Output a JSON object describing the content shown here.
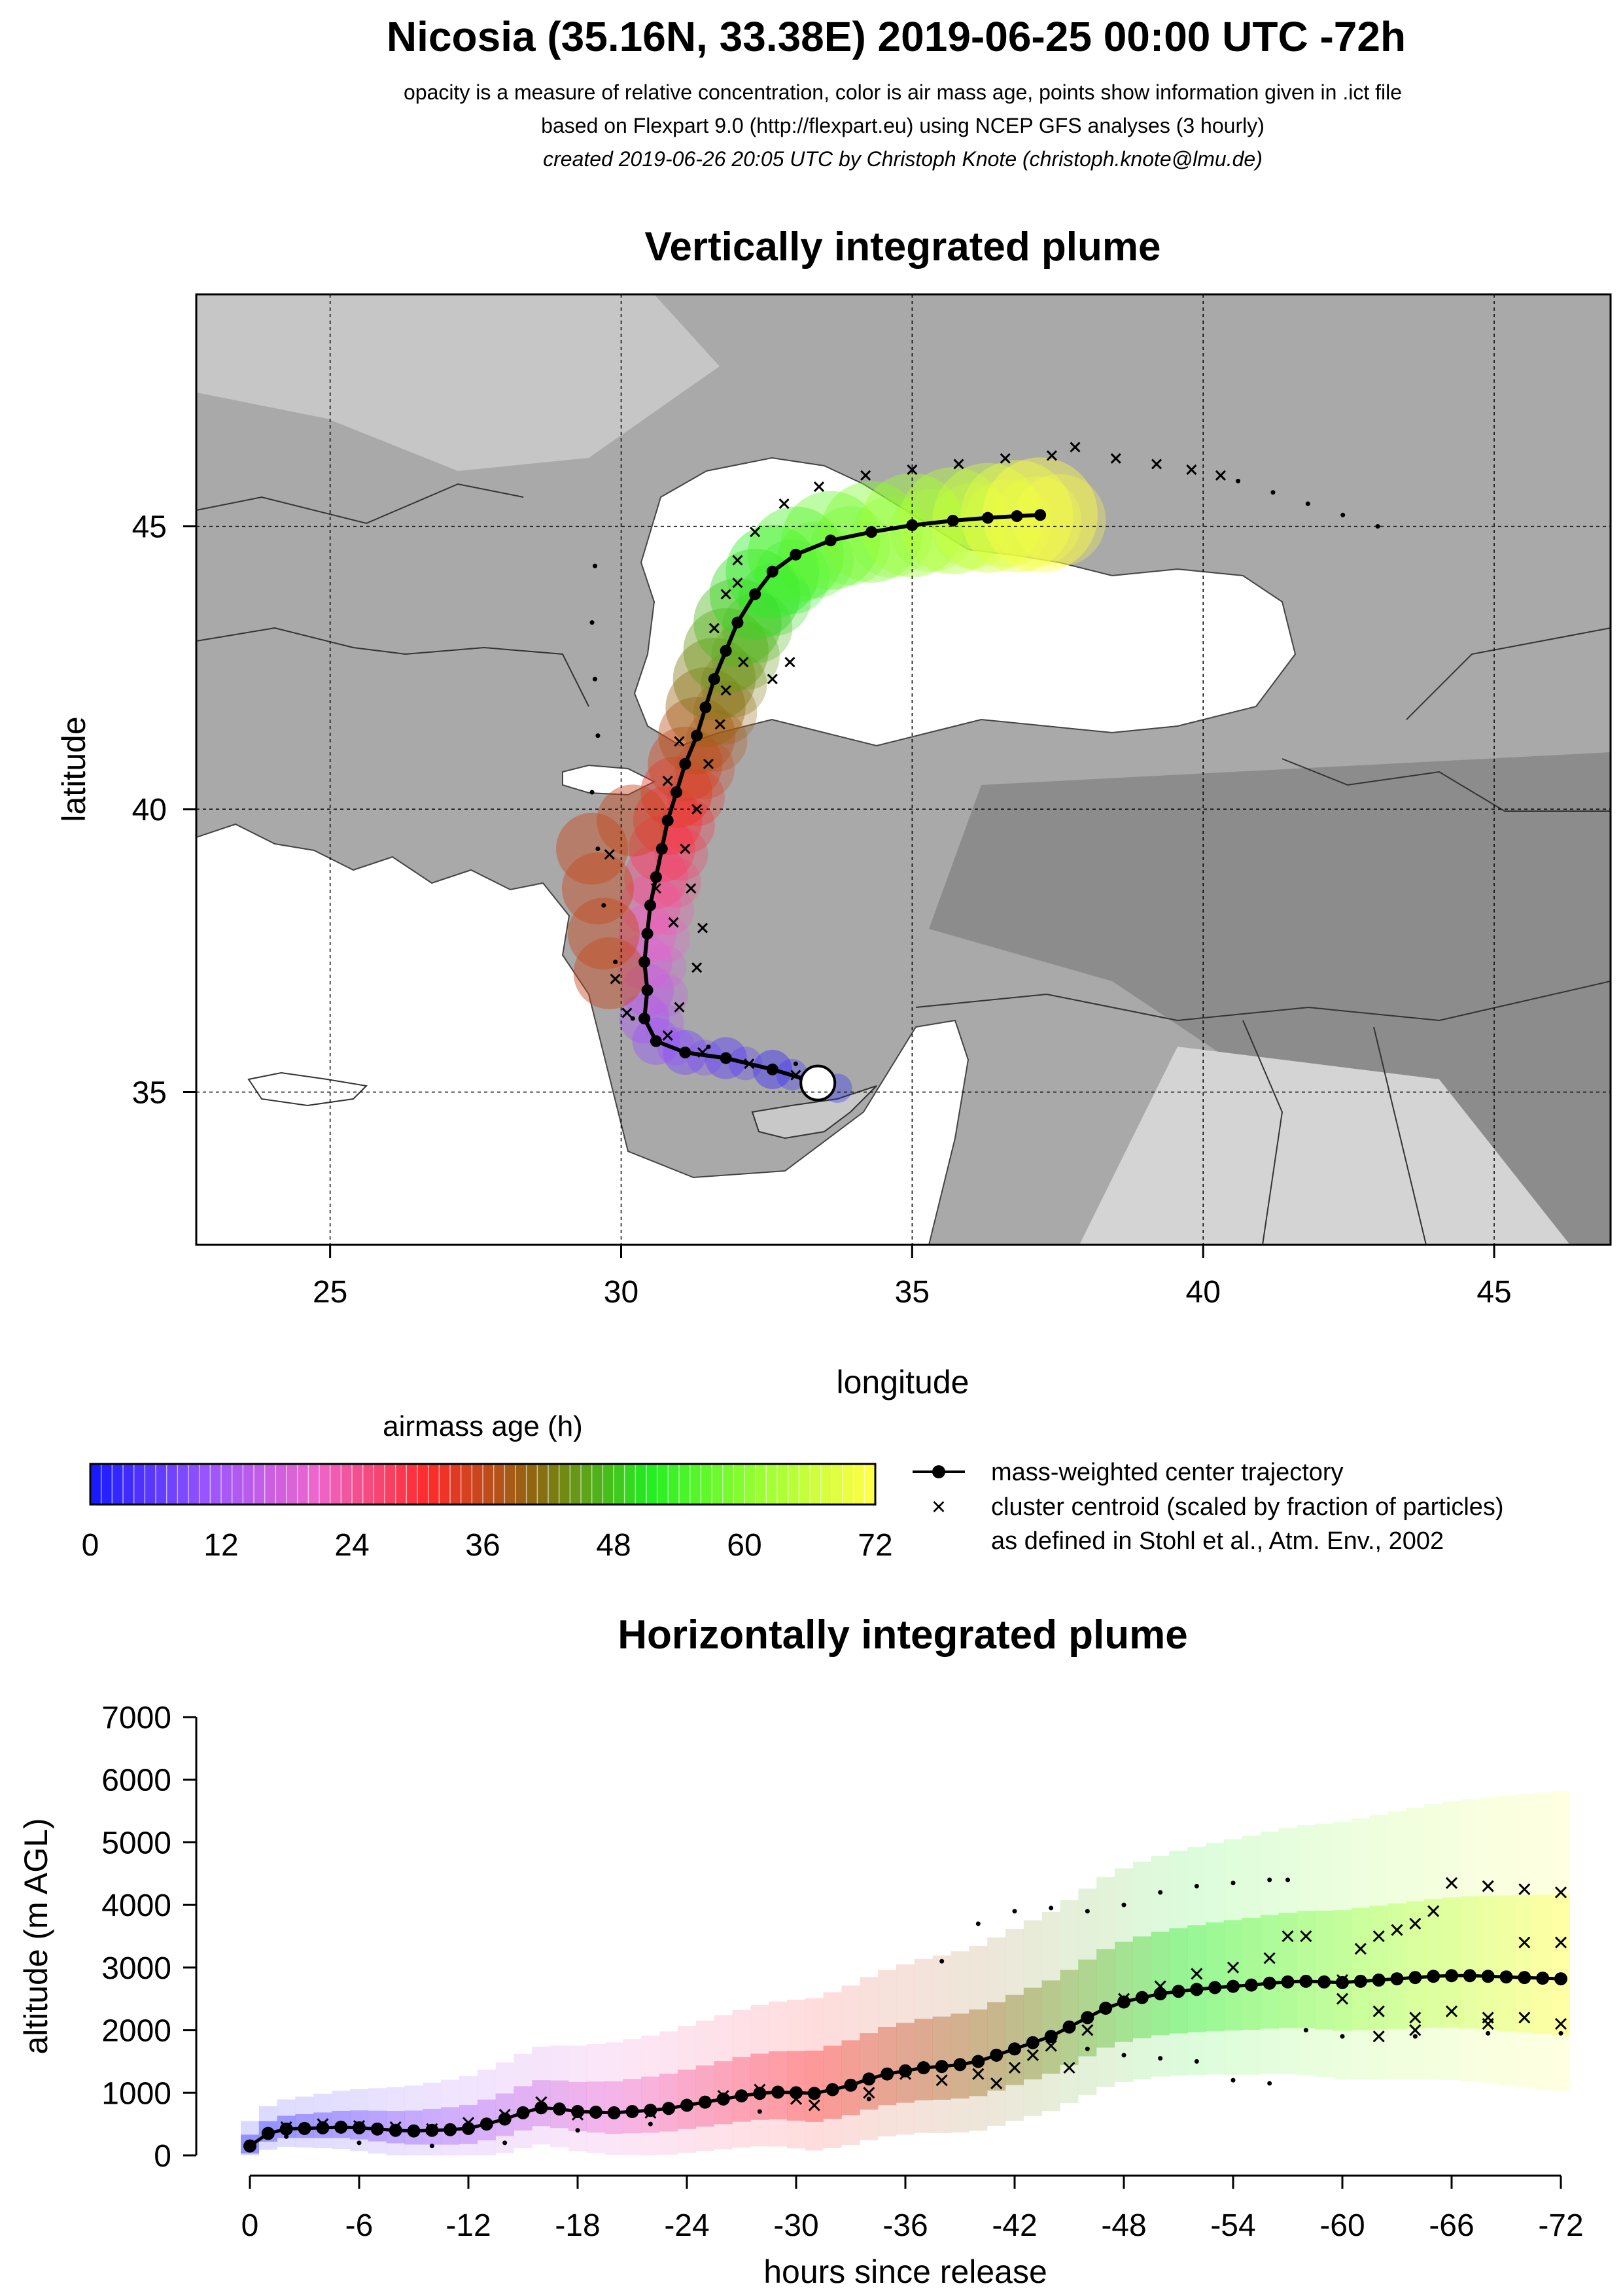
{
  "title": {
    "main": "Nicosia (35.16N, 33.38E) 2019-06-25 00:00 UTC -72h",
    "line1": "opacity is a measure of relative concentration, color is air mass age, points show information given in .ict file",
    "line2": "based on Flexpart 9.0 (http://flexpart.eu) using NCEP GFS analyses (3 hourly)",
    "line3": "created 2019-06-26 20:05 UTC by Christoph Knote (christoph.knote@lmu.de)"
  },
  "colors": {
    "age_scale": [
      "#1a1aff",
      "#9955ff",
      "#ee66cc",
      "#ff2a2a",
      "#8a6a10",
      "#22ee22",
      "#99ff33",
      "#ffff44"
    ],
    "map_shade": "#a8a8a8",
    "sea": "#ffffff",
    "trajectory": "#000000"
  },
  "chart_data": [
    {
      "type": "scatter",
      "title": "Vertically integrated plume",
      "xlabel": "longitude",
      "ylabel": "latitude",
      "xlim": [
        22.7,
        47.0
      ],
      "ylim": [
        32.3,
        49.1
      ],
      "xticks": [
        25,
        30,
        35,
        40,
        45
      ],
      "yticks": [
        35,
        40,
        45
      ],
      "tick_labels_x": [
        "25",
        "30",
        "35",
        "40",
        "45"
      ],
      "tick_labels_y": [
        "35",
        "40",
        "45"
      ],
      "grid": true,
      "release_site": {
        "label": "Nicosia",
        "lon": 33.38,
        "lat": 35.16
      },
      "series": [
        {
          "name": "mass-weighted center trajectory",
          "marker": "filled-circle-line",
          "points": [
            [
              33.38,
              35.16
            ],
            [
              32.6,
              35.4
            ],
            [
              31.8,
              35.6
            ],
            [
              31.1,
              35.7
            ],
            [
              30.6,
              35.9
            ],
            [
              30.4,
              36.3
            ],
            [
              30.45,
              36.8
            ],
            [
              30.4,
              37.3
            ],
            [
              30.45,
              37.8
            ],
            [
              30.5,
              38.3
            ],
            [
              30.6,
              38.8
            ],
            [
              30.7,
              39.3
            ],
            [
              30.8,
              39.8
            ],
            [
              30.95,
              40.3
            ],
            [
              31.1,
              40.8
            ],
            [
              31.3,
              41.3
            ],
            [
              31.45,
              41.8
            ],
            [
              31.6,
              42.3
            ],
            [
              31.8,
              42.8
            ],
            [
              32.0,
              43.3
            ],
            [
              32.3,
              43.8
            ],
            [
              32.6,
              44.2
            ],
            [
              33.0,
              44.5
            ],
            [
              33.6,
              44.75
            ],
            [
              34.3,
              44.9
            ],
            [
              35.0,
              45.02
            ],
            [
              35.7,
              45.1
            ],
            [
              36.3,
              45.15
            ],
            [
              36.8,
              45.18
            ],
            [
              37.2,
              45.2
            ]
          ]
        },
        {
          "name": "cluster centroid (scaled by fraction of particles)",
          "marker": "x",
          "points": [
            [
              33.0,
              35.3
            ],
            [
              32.2,
              35.5
            ],
            [
              31.4,
              35.7
            ],
            [
              30.8,
              36.0
            ],
            [
              31.0,
              36.5
            ],
            [
              31.3,
              37.2
            ],
            [
              31.4,
              37.9
            ],
            [
              31.2,
              38.6
            ],
            [
              31.1,
              39.3
            ],
            [
              31.3,
              40.0
            ],
            [
              31.5,
              40.8
            ],
            [
              31.7,
              41.5
            ],
            [
              31.8,
              42.1
            ],
            [
              32.1,
              42.6
            ],
            [
              32.6,
              42.3
            ],
            [
              32.9,
              42.6
            ],
            [
              31.6,
              43.2
            ],
            [
              31.8,
              43.8
            ],
            [
              32.0,
              44.4
            ],
            [
              32.3,
              44.9
            ],
            [
              32.8,
              45.4
            ],
            [
              33.4,
              45.7
            ],
            [
              34.2,
              45.9
            ],
            [
              35.0,
              46.0
            ],
            [
              35.8,
              46.1
            ],
            [
              36.6,
              46.2
            ],
            [
              37.4,
              46.25
            ],
            [
              37.8,
              46.4
            ],
            [
              38.5,
              46.2
            ],
            [
              39.2,
              46.1
            ],
            [
              39.8,
              46.0
            ],
            [
              40.3,
              45.9
            ],
            [
              30.9,
              38.0
            ],
            [
              30.6,
              38.6
            ],
            [
              30.8,
              40.5
            ],
            [
              31.0,
              41.2
            ],
            [
              32.0,
              44.0
            ],
            [
              29.9,
              37.0
            ],
            [
              30.1,
              36.4
            ],
            [
              29.8,
              39.2
            ]
          ]
        },
        {
          "name": "",
          "marker": "small-dot",
          "points": [
            [
              33.0,
              35.5
            ],
            [
              31.5,
              35.8
            ],
            [
              30.2,
              36.3
            ],
            [
              29.9,
              37.3
            ],
            [
              29.7,
              38.3
            ],
            [
              29.6,
              39.3
            ],
            [
              29.5,
              40.3
            ],
            [
              29.6,
              41.3
            ],
            [
              29.55,
              42.3
            ],
            [
              29.5,
              43.3
            ],
            [
              29.55,
              44.3
            ],
            [
              40.6,
              45.8
            ],
            [
              41.2,
              45.6
            ],
            [
              41.8,
              45.4
            ],
            [
              42.4,
              45.2
            ],
            [
              43.0,
              45.0
            ]
          ]
        }
      ]
    },
    {
      "type": "scatter",
      "title": "Horizontally integrated plume",
      "xlabel": "hours since release",
      "ylabel": "altitude (m AGL)",
      "xlim": [
        0,
        -72
      ],
      "ylim": [
        0,
        7000
      ],
      "xticks": [
        0,
        -6,
        -12,
        -18,
        -24,
        -30,
        -36,
        -42,
        -48,
        -54,
        -60,
        -66,
        -72
      ],
      "tick_labels_x": [
        "0",
        "-6",
        "-12",
        "-18",
        "-24",
        "-30",
        "-36",
        "-42",
        "-48",
        "-54",
        "-60",
        "-66",
        "-72"
      ],
      "yticks": [
        0,
        1000,
        2000,
        3000,
        4000,
        5000,
        6000,
        7000
      ],
      "tick_labels_y": [
        "0",
        "1000",
        "2000",
        "3000",
        "4000",
        "5000",
        "6000",
        "7000"
      ],
      "grid": false,
      "series": [
        {
          "name": "mass-weighted center trajectory",
          "marker": "filled-circle-line",
          "points": [
            [
              0,
              150
            ],
            [
              -1,
              350
            ],
            [
              -2,
              420
            ],
            [
              -3,
              430
            ],
            [
              -4,
              440
            ],
            [
              -5,
              450
            ],
            [
              -6,
              440
            ],
            [
              -7,
              420
            ],
            [
              -8,
              400
            ],
            [
              -9,
              390
            ],
            [
              -10,
              400
            ],
            [
              -11,
              410
            ],
            [
              -12,
              430
            ],
            [
              -13,
              500
            ],
            [
              -14,
              580
            ],
            [
              -15,
              680
            ],
            [
              -16,
              760
            ],
            [
              -17,
              740
            ],
            [
              -18,
              700
            ],
            [
              -19,
              690
            ],
            [
              -20,
              680
            ],
            [
              -21,
              700
            ],
            [
              -22,
              720
            ],
            [
              -23,
              750
            ],
            [
              -24,
              800
            ],
            [
              -25,
              850
            ],
            [
              -26,
              900
            ],
            [
              -27,
              950
            ],
            [
              -28,
              990
            ],
            [
              -29,
              1010
            ],
            [
              -30,
              1000
            ],
            [
              -31,
              990
            ],
            [
              -32,
              1050
            ],
            [
              -33,
              1120
            ],
            [
              -34,
              1220
            ],
            [
              -35,
              1300
            ],
            [
              -36,
              1350
            ],
            [
              -37,
              1400
            ],
            [
              -38,
              1420
            ],
            [
              -39,
              1450
            ],
            [
              -40,
              1500
            ],
            [
              -41,
              1600
            ],
            [
              -42,
              1700
            ],
            [
              -43,
              1800
            ],
            [
              -44,
              1900
            ],
            [
              -45,
              2050
            ],
            [
              -46,
              2200
            ],
            [
              -47,
              2350
            ],
            [
              -48,
              2450
            ],
            [
              -49,
              2520
            ],
            [
              -50,
              2580
            ],
            [
              -51,
              2620
            ],
            [
              -52,
              2650
            ],
            [
              -53,
              2680
            ],
            [
              -54,
              2700
            ],
            [
              -55,
              2720
            ],
            [
              -56,
              2750
            ],
            [
              -57,
              2770
            ],
            [
              -58,
              2780
            ],
            [
              -59,
              2770
            ],
            [
              -60,
              2760
            ],
            [
              -61,
              2780
            ],
            [
              -62,
              2800
            ],
            [
              -63,
              2820
            ],
            [
              -64,
              2840
            ],
            [
              -65,
              2860
            ],
            [
              -66,
              2870
            ],
            [
              -67,
              2870
            ],
            [
              -68,
              2860
            ],
            [
              -69,
              2850
            ],
            [
              -70,
              2840
            ],
            [
              -71,
              2830
            ],
            [
              -72,
              2820
            ]
          ]
        },
        {
          "name": "cluster centroid (scaled by fraction of particles)",
          "marker": "x",
          "points": [
            [
              -2,
              450
            ],
            [
              -4,
              500
            ],
            [
              -6,
              470
            ],
            [
              -8,
              450
            ],
            [
              -10,
              420
            ],
            [
              -12,
              520
            ],
            [
              -14,
              650
            ],
            [
              -16,
              850
            ],
            [
              -18,
              650
            ],
            [
              -22,
              680
            ],
            [
              -26,
              950
            ],
            [
              -28,
              1050
            ],
            [
              -30,
              900
            ],
            [
              -31,
              800
            ],
            [
              -34,
              1000
            ],
            [
              -36,
              1300
            ],
            [
              -38,
              1200
            ],
            [
              -40,
              1300
            ],
            [
              -41,
              1150
            ],
            [
              -42,
              1400
            ],
            [
              -43,
              1600
            ],
            [
              -44,
              1750
            ],
            [
              -45,
              1400
            ],
            [
              -46,
              2000
            ],
            [
              -48,
              2500
            ],
            [
              -50,
              2700
            ],
            [
              -52,
              2900
            ],
            [
              -54,
              3000
            ],
            [
              -56,
              3150
            ],
            [
              -57,
              3500
            ],
            [
              -58,
              3500
            ],
            [
              -60,
              2800
            ],
            [
              -61,
              3300
            ],
            [
              -62,
              3500
            ],
            [
              -63,
              3600
            ],
            [
              -64,
              3700
            ],
            [
              -65,
              3900
            ],
            [
              -66,
              4350
            ],
            [
              -68,
              4300
            ],
            [
              -70,
              4250
            ],
            [
              -72,
              4200
            ],
            [
              -60,
              2500
            ],
            [
              -62,
              2300
            ],
            [
              -64,
              2200
            ],
            [
              -66,
              2300
            ],
            [
              -68,
              2200
            ],
            [
              -70,
              3400
            ],
            [
              -72,
              3400
            ],
            [
              -62,
              1900
            ],
            [
              -64,
              2000
            ],
            [
              -68,
              2100
            ],
            [
              -70,
              2200
            ],
            [
              -72,
              2100
            ]
          ]
        },
        {
          "name": "",
          "marker": "small-dot",
          "points": [
            [
              -2,
              300
            ],
            [
              -6,
              200
            ],
            [
              -10,
              150
            ],
            [
              -14,
              200
            ],
            [
              -18,
              400
            ],
            [
              -22,
              500
            ],
            [
              -28,
              700
            ],
            [
              -34,
              900
            ],
            [
              -38,
              3100
            ],
            [
              -40,
              3700
            ],
            [
              -42,
              3900
            ],
            [
              -44,
              3950
            ],
            [
              -46,
              3900
            ],
            [
              -48,
              4000
            ],
            [
              -50,
              4200
            ],
            [
              -52,
              4300
            ],
            [
              -54,
              4350
            ],
            [
              -56,
              4400
            ],
            [
              -57,
              4400
            ],
            [
              -46,
              1700
            ],
            [
              -48,
              1600
            ],
            [
              -50,
              1550
            ],
            [
              -52,
              1500
            ],
            [
              -54,
              1200
            ],
            [
              -56,
              1150
            ],
            [
              -58,
              2000
            ],
            [
              -60,
              1900
            ],
            [
              -64,
              1900
            ],
            [
              -68,
              1950
            ],
            [
              -72,
              1950
            ]
          ]
        }
      ]
    }
  ],
  "legend": {
    "colorbar_title": "airmass age (h)",
    "colorbar_ticks": [
      "0",
      "12",
      "24",
      "36",
      "48",
      "60",
      "72"
    ],
    "center_label": "mass-weighted center trajectory",
    "cluster_label": "cluster centroid (scaled by fraction of particles)",
    "cluster_note": "as defined in Stohl et al., Atm. Env., 2002"
  }
}
